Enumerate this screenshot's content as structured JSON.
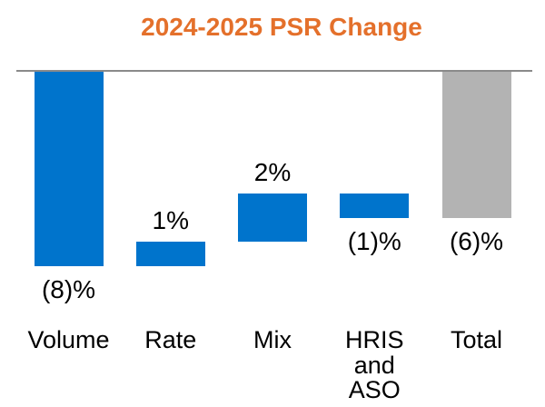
{
  "chart_data": {
    "type": "bar",
    "subtype": "waterfall",
    "title": "2024-2025 PSR Change",
    "categories": [
      "Volume",
      "Rate",
      "Mix",
      "HRIS and ASO",
      "Total"
    ],
    "values": [
      -8,
      1,
      2,
      -1,
      -6
    ],
    "value_labels": [
      "(8)%",
      "1%",
      "2%",
      "(1)%",
      "(6)%"
    ],
    "is_total": [
      false,
      false,
      false,
      false,
      true
    ],
    "units": "%",
    "ylim": [
      -8,
      0
    ],
    "grid": false,
    "legend": false,
    "baseline_value": 0
  },
  "colors": {
    "title": "#E4702B",
    "component_bar": "#0074CC",
    "total_bar": "#B3B3B3",
    "baseline_line": "#8A8A8A",
    "label_text": "#000000",
    "background": "#FFFFFF"
  }
}
